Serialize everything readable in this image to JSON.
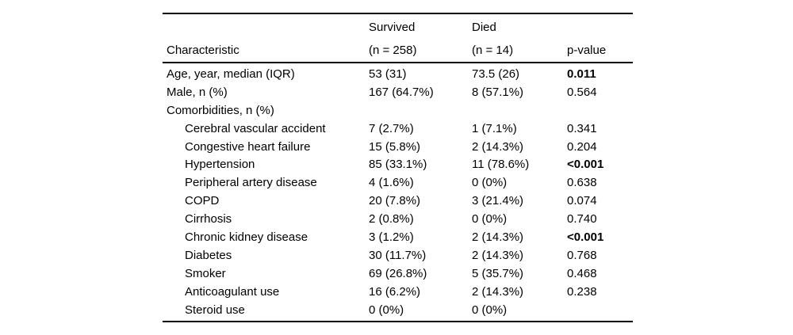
{
  "page": {
    "background": "#ffffff",
    "text_color": "#000000",
    "rule_color": "#000000"
  },
  "table": {
    "columns": {
      "characteristic": "Characteristic",
      "survived_title": "Survived",
      "survived_n": "(n = 258)",
      "died_title": "Died",
      "died_n": "(n = 14)",
      "p_value": "p-value"
    },
    "rows": [
      {
        "label": "Age, year, median (IQR)",
        "indent": false,
        "survived": "53 (31)",
        "died": "73.5 (26)",
        "p_value": "0.011",
        "p_bold": true
      },
      {
        "label": "Male, n (%)",
        "indent": false,
        "survived": "167 (64.7%)",
        "died": "8 (57.1%)",
        "p_value": "0.564",
        "p_bold": false
      },
      {
        "label": "Comorbidities, n (%)",
        "indent": false,
        "survived": "",
        "died": "",
        "p_value": "",
        "p_bold": false
      },
      {
        "label": "Cerebral vascular accident",
        "indent": true,
        "survived": "7 (2.7%)",
        "died": "1 (7.1%)",
        "p_value": "0.341",
        "p_bold": false
      },
      {
        "label": "Congestive heart failure",
        "indent": true,
        "survived": "15 (5.8%)",
        "died": "2 (14.3%)",
        "p_value": "0.204",
        "p_bold": false
      },
      {
        "label": "Hypertension",
        "indent": true,
        "survived": "85 (33.1%)",
        "died": "11 (78.6%)",
        "p_value": "<0.001",
        "p_bold": true
      },
      {
        "label": "Peripheral artery disease",
        "indent": true,
        "survived": "4 (1.6%)",
        "died": "0 (0%)",
        "p_value": "0.638",
        "p_bold": false
      },
      {
        "label": "COPD",
        "indent": true,
        "survived": "20 (7.8%)",
        "died": "3 (21.4%)",
        "p_value": "0.074",
        "p_bold": false
      },
      {
        "label": "Cirrhosis",
        "indent": true,
        "survived": "2 (0.8%)",
        "died": "0 (0%)",
        "p_value": "0.740",
        "p_bold": false
      },
      {
        "label": "Chronic kidney disease",
        "indent": true,
        "survived": "3 (1.2%)",
        "died": "2 (14.3%)",
        "p_value": "<0.001",
        "p_bold": true
      },
      {
        "label": "Diabetes",
        "indent": true,
        "survived": "30 (11.7%)",
        "died": "2 (14.3%)",
        "p_value": "0.768",
        "p_bold": false
      },
      {
        "label": "Smoker",
        "indent": true,
        "survived": "69 (26.8%)",
        "died": "5 (35.7%)",
        "p_value": "0.468",
        "p_bold": false
      },
      {
        "label": "Anticoagulant use",
        "indent": true,
        "survived": "16 (6.2%)",
        "died": "2 (14.3%)",
        "p_value": "0.238",
        "p_bold": false
      },
      {
        "label": "Steroid use",
        "indent": true,
        "survived": "0 (0%)",
        "died": "0 (0%)",
        "p_value": "",
        "p_bold": false
      }
    ]
  }
}
